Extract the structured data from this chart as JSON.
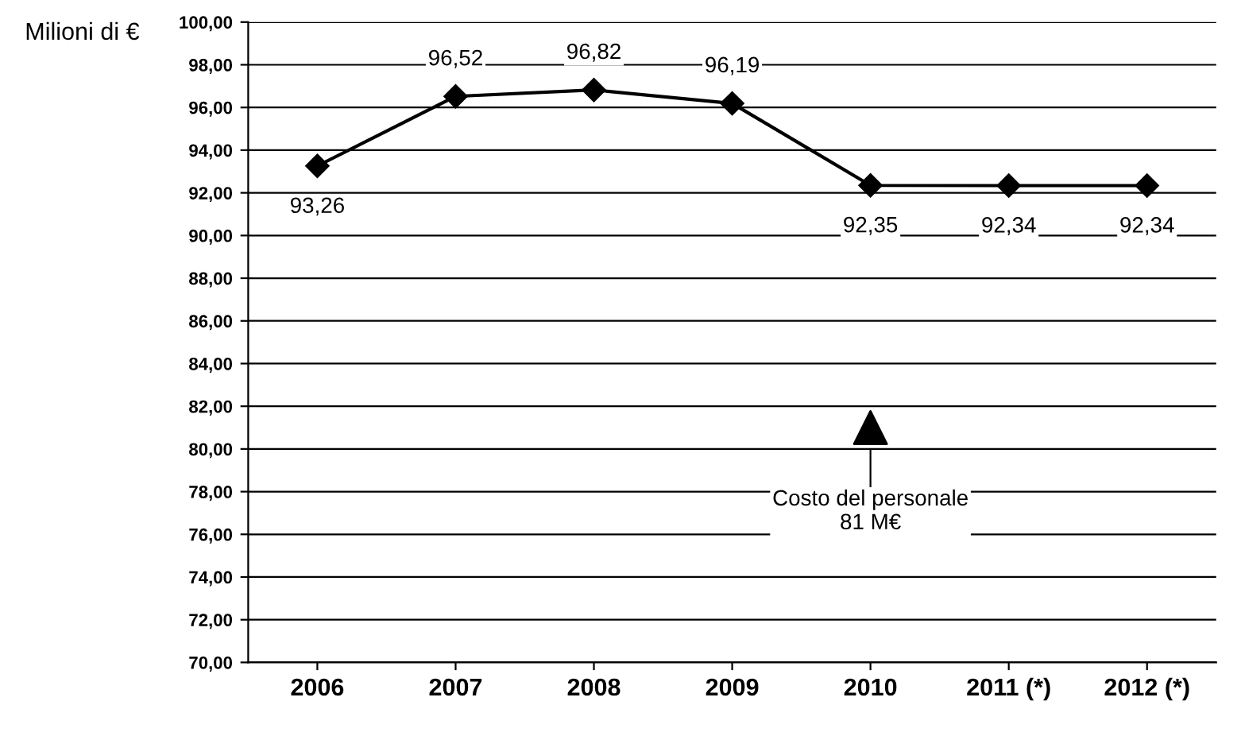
{
  "chart_data": {
    "type": "line",
    "ylabel": "Milioni di €",
    "categories": [
      "2006",
      "2007",
      "2008",
      "2009",
      "2010",
      "2011 (*)",
      "2012 (*)"
    ],
    "series": [
      {
        "color": "#000000",
        "marker": "diamond",
        "line_style": "solid",
        "values": [
          93.26,
          96.52,
          96.82,
          96.19,
          92.35,
          92.34,
          92.34
        ],
        "value_labels": [
          "93,26",
          "96,52",
          "96,82",
          "96,19",
          "92,35",
          "92,34",
          "92,34"
        ]
      },
      {
        "type": "scatter",
        "color": "#000000",
        "marker": "triangle",
        "values": [
          null,
          null,
          null,
          null,
          81,
          null,
          null
        ]
      }
    ],
    "annotations": [
      {
        "text": "Costo del personale\n81 M€",
        "x": "2010",
        "y": 81
      }
    ],
    "ylim": [
      70,
      100
    ],
    "yticks": [
      {
        "value": 70,
        "label": "70,00"
      },
      {
        "value": 72,
        "label": "72,00"
      },
      {
        "value": 74,
        "label": "74,00"
      },
      {
        "value": 76,
        "label": "76,00"
      },
      {
        "value": 78,
        "label": "78,00"
      },
      {
        "value": 80,
        "label": "80,00"
      },
      {
        "value": 82,
        "label": "82,00"
      },
      {
        "value": 84,
        "label": "84,00"
      },
      {
        "value": 86,
        "label": "86,00"
      },
      {
        "value": 88,
        "label": "88,00"
      },
      {
        "value": 90,
        "label": "90,00"
      },
      {
        "value": 92,
        "label": "92,00"
      },
      {
        "value": 94,
        "label": "94,00"
      },
      {
        "value": 96,
        "label": "96,00"
      },
      {
        "value": 98,
        "label": "98,00"
      },
      {
        "value": 100,
        "label": "100,00"
      }
    ],
    "grid": "y",
    "legend": false
  }
}
